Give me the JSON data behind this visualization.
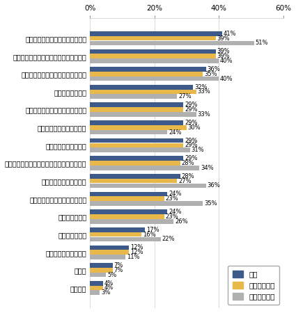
{
  "categories": [
    "入社後の具体的な仕事内容を聞く",
    "実際に働いている社員と話す機会を持つ",
    "インターネットの口コミ情報を見る",
    "同業者に話を聞く",
    "上司もしくは部下になる人に会う",
    "面接官にもっと質問をする",
    "他の企業も受けてみる",
    "転職コンサルタントにもっと企業情報を聞く",
    "今後の企業情報を調べる",
    "企業のホームページをよく見る",
    "社内見学の依頼",
    "体験入社に参加",
    "社長と話す機会を持つ",
    "その他",
    "特になし"
  ],
  "総計": [
    41,
    39,
    36,
    32,
    29,
    29,
    29,
    29,
    28,
    24,
    24,
    17,
    12,
    7,
    4
  ],
  "転職経験あり": [
    39,
    39,
    35,
    33,
    29,
    30,
    29,
    28,
    27,
    23,
    23,
    16,
    12,
    7,
    4
  ],
  "転職経験なし": [
    51,
    40,
    40,
    27,
    33,
    24,
    31,
    34,
    36,
    35,
    26,
    22,
    11,
    5,
    3
  ],
  "color_総計": "#3d5a8a",
  "color_転職経験あり": "#e8b84b",
  "color_転職経験なし": "#b0b0b0",
  "xlim": [
    0,
    60
  ],
  "xticks": [
    0,
    20,
    40,
    60
  ],
  "xticklabels": [
    "0%",
    "20%",
    "40%",
    "60%"
  ],
  "bar_height": 0.26,
  "bar_gap": 0.005,
  "fontsize_label": 7.0,
  "fontsize_tick": 7.5,
  "fontsize_value": 6.0,
  "fontsize_legend": 7.5
}
